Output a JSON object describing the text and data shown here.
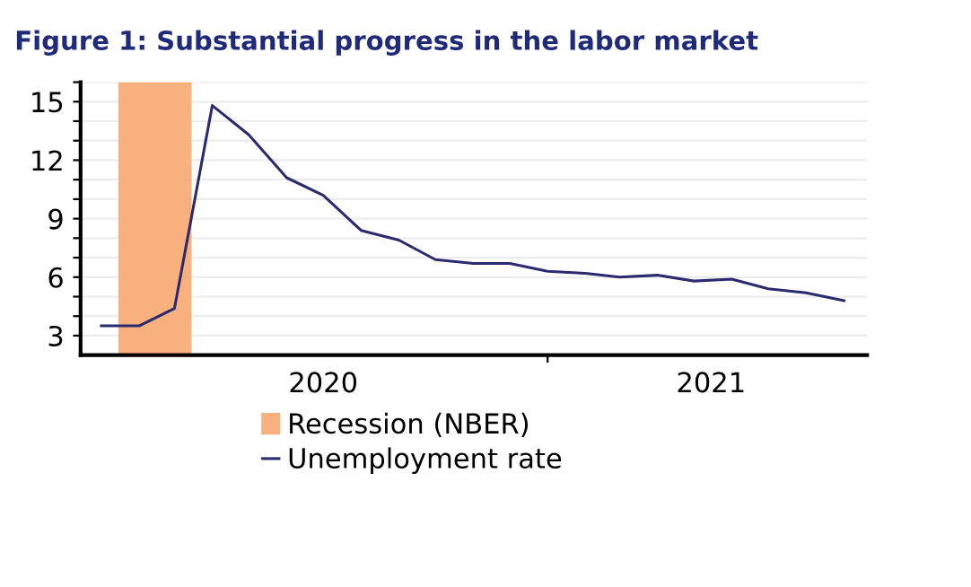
{
  "chart_data": {
    "type": "line",
    "title": "Figure 1: Substantial progress in the labor market",
    "x": [
      "2020-01",
      "2020-02",
      "2020-03",
      "2020-04",
      "2020-05",
      "2020-06",
      "2020-07",
      "2020-08",
      "2020-09",
      "2020-10",
      "2020-11",
      "2020-12",
      "2021-01",
      "2021-02",
      "2021-03",
      "2021-04",
      "2021-05",
      "2021-06",
      "2021-07",
      "2021-08",
      "2021-09"
    ],
    "series": [
      {
        "name": "Unemployment rate",
        "color": "#2b2a6e",
        "values": [
          3.5,
          3.5,
          4.4,
          14.8,
          13.3,
          11.1,
          10.2,
          8.4,
          7.9,
          6.9,
          6.7,
          6.7,
          6.3,
          6.2,
          6.0,
          6.1,
          5.8,
          5.9,
          5.4,
          5.2,
          4.8
        ]
      }
    ],
    "bands": [
      {
        "axis": "x",
        "from": "2020-01-15",
        "to": "2020-03-15",
        "label": "Recession (NBER)",
        "color": "#f9b07f"
      }
    ],
    "xlim": [
      "2019-12-15",
      "2021-09-20"
    ],
    "xticks": [
      {
        "value": "2020-07-01",
        "label": "2020"
      },
      {
        "value": "2021-01-01",
        "label": null
      },
      {
        "value": "2021-05-15",
        "label": "2021"
      }
    ],
    "ylim": [
      2,
      16
    ],
    "yticks": [
      3,
      {
        "value": 4,
        "label": null
      },
      {
        "value": 5,
        "label": null
      },
      6,
      {
        "value": 7,
        "label": null
      },
      {
        "value": 8,
        "label": null
      },
      9,
      {
        "value": 10,
        "label": null
      },
      {
        "value": 11,
        "label": null
      },
      12,
      {
        "value": 13,
        "label": null
      },
      {
        "value": 14,
        "label": null
      },
      15,
      {
        "value": 16,
        "label": null
      }
    ],
    "grid": "y",
    "legend": "bottom",
    "marker": "none",
    "line_style": "solid"
  }
}
